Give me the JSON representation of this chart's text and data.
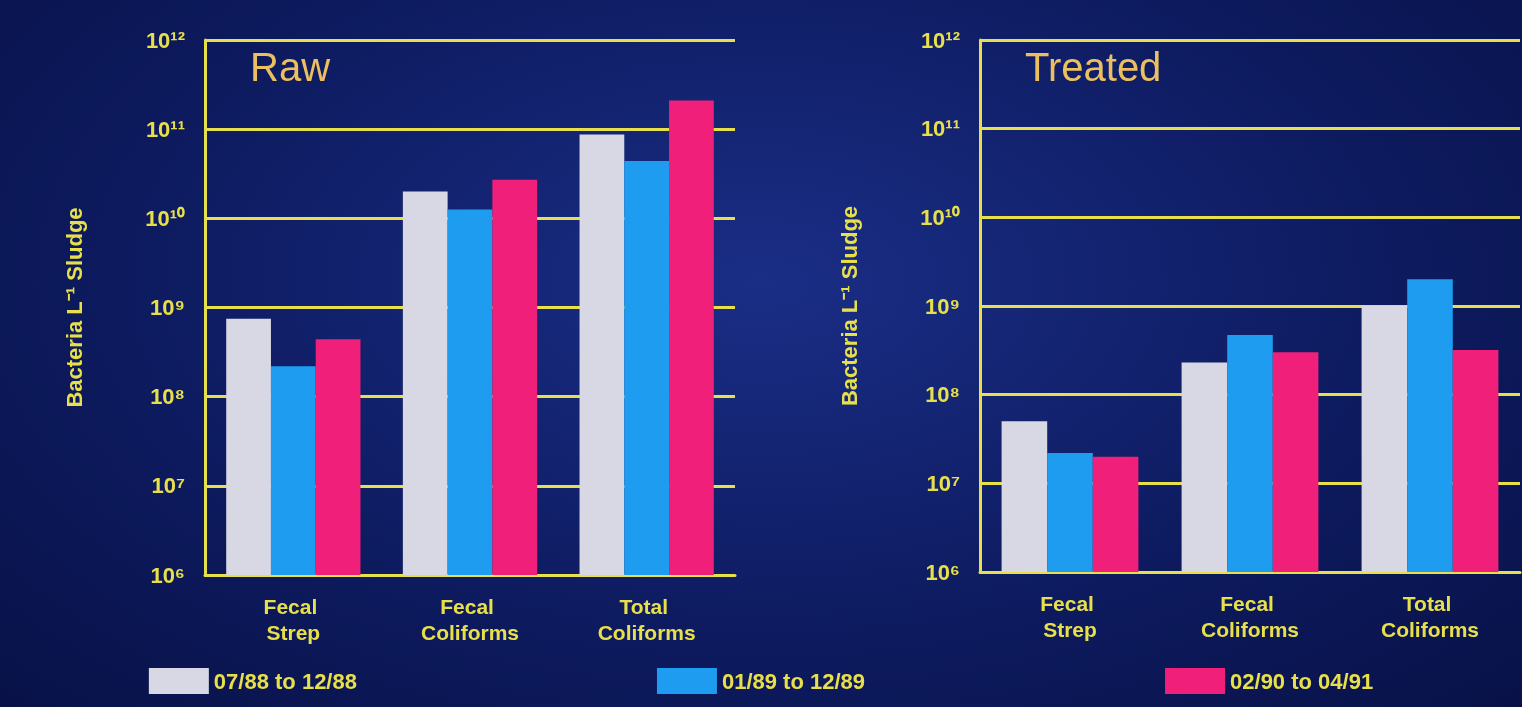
{
  "chart_data": [
    {
      "type": "bar",
      "title": "Raw",
      "ylabel": "Bacteria L⁻¹ Sludge",
      "categories": [
        "Fecal Strep",
        "Fecal Coliforms",
        "Total Coliforms"
      ],
      "log": true,
      "grid": "y",
      "legend": "bottom",
      "ylim": [
        1000000,
        1000000000000
      ],
      "yticks": [
        {
          "value": 1000000,
          "label": "10⁶"
        },
        {
          "value": 10000000,
          "label": "10⁷"
        },
        {
          "value": 100000000,
          "label": "10⁸"
        },
        {
          "value": 1000000000,
          "label": "10⁹"
        },
        {
          "value": 10000000000,
          "label": "10¹⁰"
        },
        {
          "value": 100000000000,
          "label": "10¹¹"
        },
        {
          "value": 1000000000000,
          "label": "10¹²"
        }
      ],
      "series": [
        {
          "name": "07/88 to 12/88",
          "color": "#d8d8e4",
          "values": [
            750000000,
            20000000000,
            87000000000
          ]
        },
        {
          "name": "01/89 to 12/89",
          "color": "#1e9cf0",
          "values": [
            220000000,
            12600000000,
            44000000000
          ]
        },
        {
          "name": "02/90 to 04/91",
          "color": "#f0207a",
          "values": [
            440000000,
            27000000000,
            210000000000
          ]
        }
      ]
    },
    {
      "type": "bar",
      "title": "Treated",
      "ylabel": "Bacteria L⁻¹ Sludge",
      "categories": [
        "Fecal Strep",
        "Fecal Coliforms",
        "Total Coliforms"
      ],
      "log": true,
      "grid": "y",
      "ylim": [
        1000000,
        1000000000000
      ],
      "yticks": [
        {
          "value": 1000000,
          "label": "10⁶"
        },
        {
          "value": 10000000,
          "label": "10⁷"
        },
        {
          "value": 100000000,
          "label": "10⁸"
        },
        {
          "value": 1000000000,
          "label": "10⁹"
        },
        {
          "value": 10000000000,
          "label": "10¹⁰"
        },
        {
          "value": 100000000000,
          "label": "10¹¹"
        },
        {
          "value": 1000000000000,
          "label": "10¹²"
        }
      ],
      "series": [
        {
          "color": "#d8d8e4",
          "values": [
            50000000,
            230000000,
            1000000000
          ]
        },
        {
          "color": "#1e9cf0",
          "values": [
            22000000,
            470000000,
            2000000000
          ]
        },
        {
          "color": "#f0207a",
          "values": [
            20000000,
            300000000,
            320000000
          ]
        }
      ]
    }
  ]
}
